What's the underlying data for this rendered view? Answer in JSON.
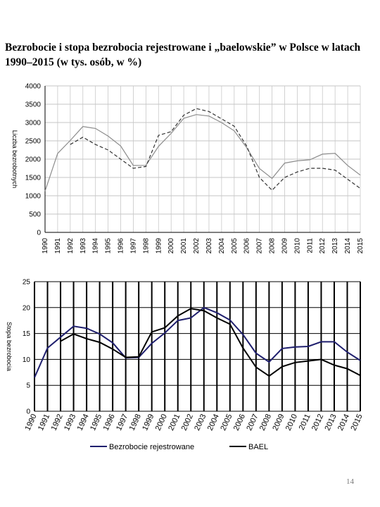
{
  "title": "Bezrobocie i stopa bezrobocia rejestrowane i „baelowskie” w Polsce w latach 1990–2015 (w tys. osób, w %)",
  "page_number": "14",
  "chart_data": [
    {
      "type": "line",
      "y_label": "Liczba bezrobotnych",
      "categories": [
        "1990",
        "1991",
        "1992",
        "1993",
        "1994",
        "1995",
        "1996",
        "1997",
        "1998",
        "1999",
        "2000",
        "2001",
        "2002",
        "2003",
        "2004",
        "2005",
        "2006",
        "2007",
        "2008",
        "2009",
        "2010",
        "2011",
        "2012",
        "2013",
        "2014",
        "2015"
      ],
      "ylim": [
        0,
        4000
      ],
      "yticks": [
        0,
        500,
        1000,
        1500,
        2000,
        2500,
        3000,
        3500,
        4000
      ],
      "grid": true,
      "vgrid": "light",
      "series": [
        {
          "color": "#8c8c8c",
          "line_style": "solid",
          "values": [
            1126,
            2156,
            2509,
            2890,
            2838,
            2629,
            2360,
            1826,
            1831,
            2350,
            2703,
            3116,
            3217,
            3176,
            2999,
            2773,
            2309,
            1746,
            1474,
            1892,
            1954,
            1982,
            2137,
            2158,
            1825,
            1563
          ]
        },
        {
          "color": "#333333",
          "line_style": "dashed",
          "values": [
            null,
            null,
            2400,
            2600,
            2400,
            2250,
            2000,
            1750,
            1800,
            2650,
            2750,
            3200,
            3380,
            3300,
            3100,
            2900,
            2350,
            1500,
            1150,
            1500,
            1650,
            1750,
            1750,
            1700,
            1450,
            1200
          ]
        }
      ]
    },
    {
      "type": "line",
      "y_label": "Stopa bezrobocia",
      "categories": [
        "1990",
        "1991",
        "1992",
        "1993",
        "1994",
        "1995",
        "1996",
        "1997",
        "1998",
        "1999",
        "2000",
        "2001",
        "2002",
        "2003",
        "2004",
        "2005",
        "2006",
        "2007",
        "2008",
        "2009",
        "2010",
        "2011",
        "2012",
        "2013",
        "2014",
        "2015"
      ],
      "ylim": [
        0,
        25
      ],
      "yticks": [
        0,
        5,
        10,
        15,
        20,
        25
      ],
      "grid": true,
      "vgrid": "heavy",
      "legend": "bottom",
      "series": [
        {
          "name": "Bezrobocie rejestrowane",
          "color": "#1f1f6e",
          "line_style": "solid",
          "values": [
            6.5,
            12.2,
            14.3,
            16.4,
            16.0,
            14.9,
            13.2,
            10.3,
            10.4,
            13.1,
            15.1,
            17.5,
            18.0,
            20.0,
            19.0,
            17.6,
            14.8,
            11.2,
            9.5,
            12.1,
            12.4,
            12.5,
            13.4,
            13.4,
            11.4,
            9.8
          ]
        },
        {
          "name": "BAEL",
          "color": "#000000",
          "line_style": "solid",
          "values": [
            null,
            null,
            13.5,
            14.9,
            14.0,
            13.3,
            12.0,
            10.4,
            10.5,
            15.3,
            16.1,
            18.4,
            19.8,
            19.4,
            18.0,
            16.8,
            12.2,
            8.5,
            6.8,
            8.6,
            9.4,
            9.7,
            10.0,
            8.9,
            8.2,
            6.9
          ]
        }
      ]
    }
  ]
}
